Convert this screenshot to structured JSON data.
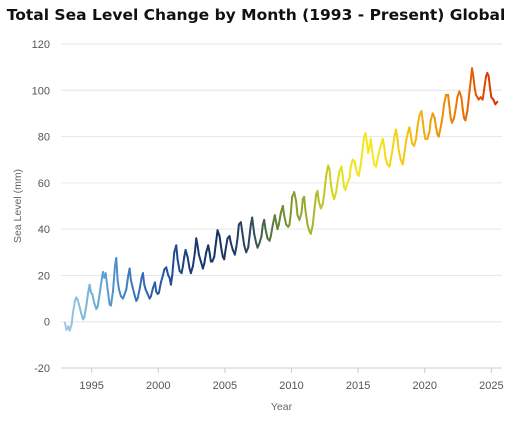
{
  "chart_data": {
    "type": "line",
    "title": "Total Sea Level Change by Month (1993 - Present) Global",
    "xlabel": "Year",
    "ylabel": "Sea Level (mm)",
    "xlim": [
      1992.7,
      2025.8
    ],
    "ylim": [
      -20,
      120
    ],
    "x_ticks": [
      1995,
      2000,
      2005,
      2010,
      2015,
      2020,
      2025
    ],
    "y_ticks": [
      -20,
      0,
      20,
      40,
      60,
      80,
      100,
      120
    ],
    "grid": "horizontal",
    "legend": "none",
    "series": [
      {
        "values": [
          [
            1993.0,
            -0.5
          ],
          [
            1993.1,
            -3.5
          ],
          [
            1993.25,
            -2.0
          ],
          [
            1993.35,
            -3.8
          ],
          [
            1993.5,
            -1.0
          ],
          [
            1993.6,
            4.0
          ],
          [
            1993.75,
            9.0
          ],
          [
            1993.85,
            10.5
          ],
          [
            1993.95,
            9.5
          ],
          [
            1994.05,
            7.5
          ],
          [
            1994.2,
            4.0
          ],
          [
            1994.35,
            1.0
          ],
          [
            1994.45,
            2.0
          ],
          [
            1994.6,
            7.0
          ],
          [
            1994.75,
            13.0
          ],
          [
            1994.85,
            16.0
          ],
          [
            1994.95,
            12.5
          ],
          [
            1995.05,
            12.0
          ],
          [
            1995.2,
            8.0
          ],
          [
            1995.35,
            5.5
          ],
          [
            1995.45,
            6.5
          ],
          [
            1995.6,
            12.0
          ],
          [
            1995.75,
            18.0
          ],
          [
            1995.85,
            21.5
          ],
          [
            1995.95,
            19.0
          ],
          [
            1996.05,
            21.0
          ],
          [
            1996.2,
            14.0
          ],
          [
            1996.35,
            7.5
          ],
          [
            1996.45,
            7.0
          ],
          [
            1996.6,
            13.0
          ],
          [
            1996.75,
            24.0
          ],
          [
            1996.85,
            27.5
          ],
          [
            1996.95,
            18.0
          ],
          [
            1997.05,
            14.0
          ],
          [
            1997.2,
            11.0
          ],
          [
            1997.35,
            10.0
          ],
          [
            1997.45,
            11.5
          ],
          [
            1997.6,
            14.0
          ],
          [
            1997.75,
            20.0
          ],
          [
            1997.85,
            23.0
          ],
          [
            1997.95,
            18.0
          ],
          [
            1998.05,
            15.5
          ],
          [
            1998.2,
            12.0
          ],
          [
            1998.35,
            9.0
          ],
          [
            1998.45,
            10.0
          ],
          [
            1998.6,
            14.0
          ],
          [
            1998.75,
            19.0
          ],
          [
            1998.85,
            21.0
          ],
          [
            1998.95,
            16.0
          ],
          [
            1999.05,
            14.0
          ],
          [
            1999.2,
            12.0
          ],
          [
            1999.35,
            10.0
          ],
          [
            1999.45,
            11.0
          ],
          [
            1999.6,
            14.5
          ],
          [
            1999.75,
            17.0
          ],
          [
            1999.85,
            13.0
          ],
          [
            1999.95,
            12.0
          ],
          [
            2000.05,
            12.5
          ],
          [
            2000.2,
            17.0
          ],
          [
            2000.35,
            20.0
          ],
          [
            2000.45,
            22.5
          ],
          [
            2000.6,
            23.5
          ],
          [
            2000.75,
            20.0
          ],
          [
            2000.85,
            19.0
          ],
          [
            2000.95,
            16.0
          ],
          [
            2001.05,
            20.0
          ],
          [
            2001.2,
            30.0
          ],
          [
            2001.35,
            33.0
          ],
          [
            2001.45,
            27.0
          ],
          [
            2001.6,
            22.0
          ],
          [
            2001.75,
            21.0
          ],
          [
            2001.85,
            24.0
          ],
          [
            2001.95,
            28.0
          ],
          [
            2002.05,
            31.0
          ],
          [
            2002.2,
            28.0
          ],
          [
            2002.35,
            23.0
          ],
          [
            2002.45,
            21.0
          ],
          [
            2002.6,
            24.0
          ],
          [
            2002.75,
            30.0
          ],
          [
            2002.85,
            36.0
          ],
          [
            2002.95,
            33.0
          ],
          [
            2003.05,
            29.0
          ],
          [
            2003.2,
            26.0
          ],
          [
            2003.35,
            23.0
          ],
          [
            2003.45,
            25.0
          ],
          [
            2003.6,
            30.0
          ],
          [
            2003.75,
            33.0
          ],
          [
            2003.85,
            30.0
          ],
          [
            2003.95,
            26.0
          ],
          [
            2004.05,
            26.0
          ],
          [
            2004.2,
            28.0
          ],
          [
            2004.35,
            35.0
          ],
          [
            2004.45,
            39.5
          ],
          [
            2004.6,
            37.0
          ],
          [
            2004.75,
            31.0
          ],
          [
            2004.85,
            28.0
          ],
          [
            2004.95,
            27.0
          ],
          [
            2005.05,
            31.0
          ],
          [
            2005.2,
            36.0
          ],
          [
            2005.35,
            37.0
          ],
          [
            2005.45,
            34.0
          ],
          [
            2005.6,
            31.0
          ],
          [
            2005.75,
            29.0
          ],
          [
            2005.85,
            32.0
          ],
          [
            2005.95,
            36.0
          ],
          [
            2006.05,
            42.0
          ],
          [
            2006.2,
            43.0
          ],
          [
            2006.35,
            37.0
          ],
          [
            2006.45,
            33.0
          ],
          [
            2006.6,
            30.0
          ],
          [
            2006.75,
            32.0
          ],
          [
            2006.85,
            37.0
          ],
          [
            2006.95,
            42.0
          ],
          [
            2007.05,
            45.0
          ],
          [
            2007.2,
            38.0
          ],
          [
            2007.35,
            34.0
          ],
          [
            2007.45,
            32.0
          ],
          [
            2007.6,
            34.0
          ],
          [
            2007.75,
            37.0
          ],
          [
            2007.85,
            42.0
          ],
          [
            2007.95,
            44.0
          ],
          [
            2008.05,
            40.0
          ],
          [
            2008.2,
            36.0
          ],
          [
            2008.35,
            35.0
          ],
          [
            2008.45,
            37.0
          ],
          [
            2008.6,
            42.0
          ],
          [
            2008.75,
            46.0
          ],
          [
            2008.85,
            43.0
          ],
          [
            2008.95,
            40.0
          ],
          [
            2009.05,
            42.0
          ],
          [
            2009.2,
            47.0
          ],
          [
            2009.35,
            50.0
          ],
          [
            2009.45,
            46.0
          ],
          [
            2009.6,
            42.0
          ],
          [
            2009.75,
            41.0
          ],
          [
            2009.85,
            42.0
          ],
          [
            2009.95,
            47.0
          ],
          [
            2010.05,
            54.0
          ],
          [
            2010.2,
            56.0
          ],
          [
            2010.35,
            52.0
          ],
          [
            2010.45,
            46.0
          ],
          [
            2010.6,
            44.0
          ],
          [
            2010.75,
            47.0
          ],
          [
            2010.85,
            53.0
          ],
          [
            2010.95,
            54.0
          ],
          [
            2011.05,
            48.0
          ],
          [
            2011.2,
            42.0
          ],
          [
            2011.35,
            39.0
          ],
          [
            2011.45,
            38.0
          ],
          [
            2011.6,
            42.0
          ],
          [
            2011.75,
            50.0
          ],
          [
            2011.85,
            55.0
          ],
          [
            2011.95,
            56.5
          ],
          [
            2012.05,
            52.0
          ],
          [
            2012.2,
            49.0
          ],
          [
            2012.35,
            51.0
          ],
          [
            2012.45,
            55.0
          ],
          [
            2012.6,
            63.0
          ],
          [
            2012.75,
            67.5
          ],
          [
            2012.85,
            66.0
          ],
          [
            2012.95,
            60.0
          ],
          [
            2013.05,
            56.0
          ],
          [
            2013.2,
            53.0
          ],
          [
            2013.35,
            56.0
          ],
          [
            2013.45,
            60.0
          ],
          [
            2013.6,
            65.0
          ],
          [
            2013.75,
            67.0
          ],
          [
            2013.85,
            63.0
          ],
          [
            2013.95,
            58.0
          ],
          [
            2014.05,
            57.0
          ],
          [
            2014.2,
            60.0
          ],
          [
            2014.35,
            62.0
          ],
          [
            2014.45,
            67.0
          ],
          [
            2014.6,
            70.0
          ],
          [
            2014.75,
            69.0
          ],
          [
            2014.85,
            66.0
          ],
          [
            2014.95,
            64.0
          ],
          [
            2015.05,
            63.0
          ],
          [
            2015.2,
            68.0
          ],
          [
            2015.35,
            75.0
          ],
          [
            2015.45,
            80.0
          ],
          [
            2015.55,
            81.5
          ],
          [
            2015.65,
            78.0
          ],
          [
            2015.75,
            73.0
          ],
          [
            2015.85,
            75.0
          ],
          [
            2015.95,
            79.0
          ],
          [
            2016.05,
            74.0
          ],
          [
            2016.2,
            68.0
          ],
          [
            2016.35,
            67.0
          ],
          [
            2016.45,
            70.0
          ],
          [
            2016.6,
            74.0
          ],
          [
            2016.75,
            77.0
          ],
          [
            2016.85,
            79.0
          ],
          [
            2016.95,
            76.0
          ],
          [
            2017.05,
            71.0
          ],
          [
            2017.2,
            68.0
          ],
          [
            2017.35,
            67.0
          ],
          [
            2017.45,
            70.0
          ],
          [
            2017.6,
            75.0
          ],
          [
            2017.75,
            81.0
          ],
          [
            2017.85,
            83.0
          ],
          [
            2017.95,
            79.0
          ],
          [
            2018.05,
            74.0
          ],
          [
            2018.2,
            70.0
          ],
          [
            2018.35,
            68.0
          ],
          [
            2018.45,
            72.0
          ],
          [
            2018.6,
            78.0
          ],
          [
            2018.75,
            82.0
          ],
          [
            2018.85,
            84.0
          ],
          [
            2018.95,
            81.0
          ],
          [
            2019.05,
            77.0
          ],
          [
            2019.2,
            76.0
          ],
          [
            2019.35,
            79.0
          ],
          [
            2019.45,
            84.0
          ],
          [
            2019.6,
            89.0
          ],
          [
            2019.75,
            91.0
          ],
          [
            2019.85,
            87.0
          ],
          [
            2019.95,
            82.0
          ],
          [
            2020.05,
            79.0
          ],
          [
            2020.2,
            79.0
          ],
          [
            2020.35,
            82.0
          ],
          [
            2020.45,
            87.0
          ],
          [
            2020.6,
            90.0
          ],
          [
            2020.75,
            88.0
          ],
          [
            2020.85,
            84.0
          ],
          [
            2020.95,
            81.0
          ],
          [
            2021.05,
            80.0
          ],
          [
            2021.2,
            84.0
          ],
          [
            2021.35,
            89.0
          ],
          [
            2021.45,
            94.0
          ],
          [
            2021.6,
            98.0
          ],
          [
            2021.75,
            98.0
          ],
          [
            2021.85,
            93.0
          ],
          [
            2021.95,
            88.0
          ],
          [
            2022.05,
            86.0
          ],
          [
            2022.2,
            88.0
          ],
          [
            2022.35,
            93.0
          ],
          [
            2022.45,
            97.0
          ],
          [
            2022.6,
            99.5
          ],
          [
            2022.75,
            97.0
          ],
          [
            2022.85,
            92.0
          ],
          [
            2022.95,
            88.0
          ],
          [
            2023.05,
            87.0
          ],
          [
            2023.2,
            91.0
          ],
          [
            2023.35,
            99.0
          ],
          [
            2023.45,
            104.0
          ],
          [
            2023.55,
            109.5
          ],
          [
            2023.65,
            106.0
          ],
          [
            2023.75,
            101.0
          ],
          [
            2023.85,
            98.0
          ],
          [
            2023.95,
            97.0
          ],
          [
            2024.05,
            96.0
          ],
          [
            2024.2,
            97.0
          ],
          [
            2024.35,
            96.0
          ],
          [
            2024.45,
            100.0
          ],
          [
            2024.6,
            106.0
          ],
          [
            2024.7,
            107.5
          ],
          [
            2024.8,
            106.0
          ],
          [
            2024.9,
            101.0
          ],
          [
            2025.0,
            97.0
          ],
          [
            2025.15,
            96.0
          ],
          [
            2025.3,
            94.0
          ],
          [
            2025.45,
            95.0
          ]
        ]
      }
    ],
    "colors": {
      "grid": "#e6e6e6",
      "gradient": [
        "#9ecae1",
        "#6aaed6",
        "#3f7fc4",
        "#2a5aa8",
        "#1c3e7a",
        "#16305f",
        "#2b4862",
        "#6c8a2f",
        "#a6b52e",
        "#e8e21d",
        "#f7e81a",
        "#f5c710",
        "#f09a07",
        "#e86a04",
        "#d62d04"
      ]
    }
  }
}
